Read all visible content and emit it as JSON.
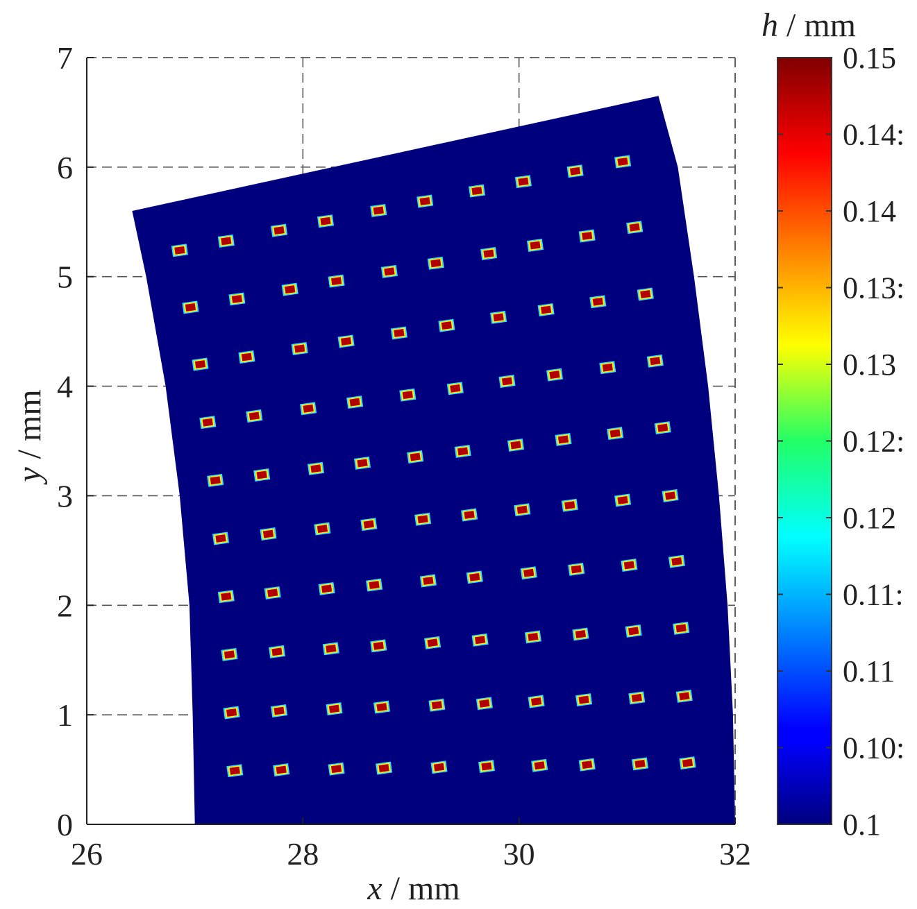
{
  "chart_data": {
    "type": "heatmap",
    "title": "",
    "xlabel": {
      "var": "x",
      "unit": " / mm"
    },
    "ylabel": {
      "var": "y",
      "unit": " / mm"
    },
    "xlim": [
      26,
      32
    ],
    "ylim": [
      0,
      7
    ],
    "xticks": [
      "26",
      "28",
      "30",
      "32"
    ],
    "yticks": [
      "0",
      "1",
      "2",
      "3",
      "4",
      "5",
      "6",
      "7"
    ],
    "grid": true,
    "colorbar": {
      "title": {
        "var": "h",
        "unit": " / mm"
      },
      "range": [
        0.1,
        0.15
      ],
      "colormap": "jet",
      "tick_labels": [
        "0.1",
        "0.10:",
        "0.11",
        "0.11:",
        "0.12",
        "0.12:",
        "0.13",
        "0.13:",
        "0.14",
        "0.14:",
        "0.15"
      ]
    },
    "domain": {
      "fill_value": 0.1,
      "fill_color": "#00007f",
      "outline": [
        [
          27.0,
          0.0
        ],
        [
          32.0,
          0.0
        ],
        [
          31.98,
          1.0
        ],
        [
          31.93,
          2.0
        ],
        [
          31.85,
          3.0
        ],
        [
          31.75,
          4.0
        ],
        [
          31.62,
          5.0
        ],
        [
          31.47,
          6.0
        ],
        [
          31.29,
          6.65
        ],
        [
          26.42,
          5.6
        ],
        [
          26.55,
          5.0
        ],
        [
          26.73,
          4.0
        ],
        [
          26.86,
          3.0
        ],
        [
          26.95,
          2.0
        ],
        [
          26.98,
          1.0
        ]
      ]
    },
    "spots": {
      "value": 0.15,
      "rows": [
        {
          "y_left": 0.49,
          "y_right": 0.56,
          "x": [
            27.37,
            27.8,
            28.31,
            28.75,
            29.26,
            29.7,
            30.19,
            30.63,
            31.12,
            31.56
          ]
        },
        {
          "y_left": 1.02,
          "y_right": 1.17,
          "x": [
            27.34,
            27.78,
            28.29,
            28.73,
            29.24,
            29.68,
            30.16,
            30.6,
            31.09,
            31.53
          ]
        },
        {
          "y_left": 1.55,
          "y_right": 1.79,
          "x": [
            27.32,
            27.76,
            28.26,
            28.7,
            29.2,
            29.64,
            30.13,
            30.57,
            31.06,
            31.5
          ]
        },
        {
          "y_left": 2.08,
          "y_right": 2.4,
          "x": [
            27.29,
            27.72,
            28.22,
            28.66,
            29.16,
            29.59,
            30.09,
            30.53,
            31.02,
            31.46
          ]
        },
        {
          "y_left": 2.61,
          "y_right": 3.0,
          "x": [
            27.24,
            27.68,
            28.18,
            28.61,
            29.11,
            29.54,
            30.03,
            30.47,
            30.96,
            31.4
          ]
        },
        {
          "y_left": 3.14,
          "y_right": 3.62,
          "x": [
            27.19,
            27.62,
            28.12,
            28.55,
            29.04,
            29.48,
            29.97,
            30.41,
            30.89,
            31.33
          ]
        },
        {
          "y_left": 3.67,
          "y_right": 4.23,
          "x": [
            27.12,
            27.55,
            28.05,
            28.48,
            28.97,
            29.41,
            29.89,
            30.33,
            30.82,
            31.26
          ]
        },
        {
          "y_left": 4.2,
          "y_right": 4.84,
          "x": [
            27.05,
            27.48,
            27.97,
            28.4,
            28.89,
            29.33,
            29.81,
            30.25,
            30.73,
            31.17
          ]
        },
        {
          "y_left": 4.72,
          "y_right": 5.45,
          "x": [
            26.96,
            27.39,
            27.88,
            28.31,
            28.8,
            29.23,
            29.72,
            30.15,
            30.63,
            31.07
          ]
        },
        {
          "y_left": 5.24,
          "y_right": 6.05,
          "x": [
            26.86,
            27.29,
            27.78,
            28.21,
            28.7,
            29.13,
            29.61,
            30.04,
            30.52,
            30.96
          ]
        }
      ]
    }
  }
}
